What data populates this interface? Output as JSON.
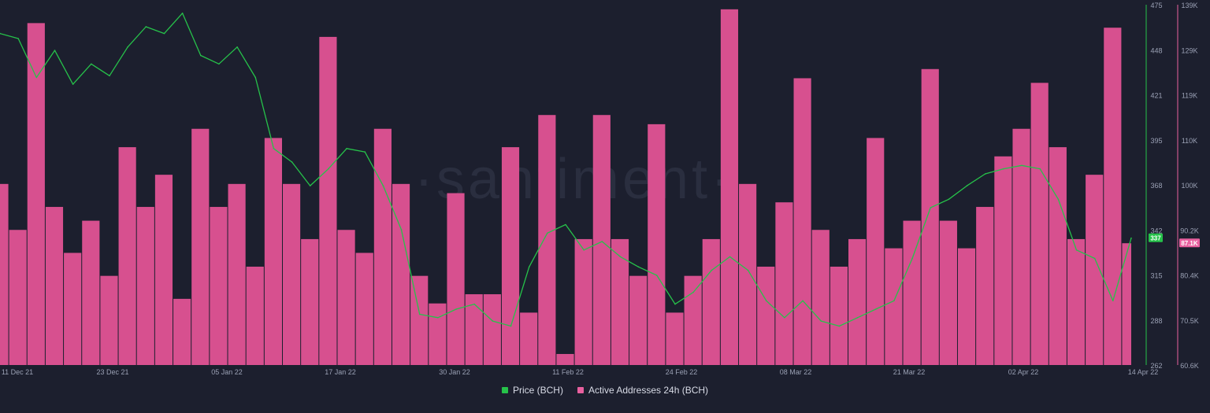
{
  "watermark": "·santiment·",
  "colors": {
    "background": "#1c1f2e",
    "price": "#26c24a",
    "active": "#e8609f",
    "active_fill": "#d7508f",
    "axis_text": "#9aa0b4"
  },
  "chart_data": {
    "type": "bar",
    "x_labels": [
      "11 Dec 21",
      "23 Dec 21",
      "05 Jan 22",
      "17 Jan 22",
      "30 Jan 22",
      "11 Feb 22",
      "24 Feb 22",
      "08 Mar 22",
      "21 Mar 22",
      "02 Apr 22",
      "14 Apr 22"
    ],
    "x_range": [
      "2021-12-11",
      "2022-04-14"
    ],
    "price_axis": {
      "ticks": [
        "475",
        "448",
        "421",
        "395",
        "368",
        "342",
        "315",
        "288",
        "262"
      ],
      "ylim": [
        262,
        475
      ]
    },
    "active_axis": {
      "ticks": [
        "139K",
        "129K",
        "119K",
        "110K",
        "100K",
        "90.2K",
        "80.4K",
        "70.5K",
        "60.6K"
      ],
      "ylim": [
        60600,
        139000
      ]
    },
    "last_values": {
      "price": "337",
      "active": "87.1K"
    },
    "series": [
      {
        "name": "Price (BCH)",
        "axis": "left",
        "render": "line",
        "values": [
          {
            "x": "2021-12-11",
            "y": 458
          },
          {
            "x": "2021-12-13",
            "y": 455
          },
          {
            "x": "2021-12-15",
            "y": 432
          },
          {
            "x": "2021-12-17",
            "y": 448
          },
          {
            "x": "2021-12-19",
            "y": 428
          },
          {
            "x": "2021-12-21",
            "y": 440
          },
          {
            "x": "2021-12-23",
            "y": 433
          },
          {
            "x": "2021-12-25",
            "y": 450
          },
          {
            "x": "2021-12-27",
            "y": 462
          },
          {
            "x": "2021-12-29",
            "y": 458
          },
          {
            "x": "2021-12-31",
            "y": 470
          },
          {
            "x": "2022-01-02",
            "y": 445
          },
          {
            "x": "2022-01-04",
            "y": 440
          },
          {
            "x": "2022-01-06",
            "y": 450
          },
          {
            "x": "2022-01-08",
            "y": 432
          },
          {
            "x": "2022-01-10",
            "y": 390
          },
          {
            "x": "2022-01-12",
            "y": 382
          },
          {
            "x": "2022-01-14",
            "y": 368
          },
          {
            "x": "2022-01-16",
            "y": 378
          },
          {
            "x": "2022-01-18",
            "y": 390
          },
          {
            "x": "2022-01-20",
            "y": 388
          },
          {
            "x": "2022-01-22",
            "y": 368
          },
          {
            "x": "2022-01-24",
            "y": 342
          },
          {
            "x": "2022-01-26",
            "y": 292
          },
          {
            "x": "2022-01-28",
            "y": 290
          },
          {
            "x": "2022-01-30",
            "y": 295
          },
          {
            "x": "2022-02-01",
            "y": 298
          },
          {
            "x": "2022-02-03",
            "y": 288
          },
          {
            "x": "2022-02-05",
            "y": 285
          },
          {
            "x": "2022-02-07",
            "y": 320
          },
          {
            "x": "2022-02-09",
            "y": 340
          },
          {
            "x": "2022-02-11",
            "y": 345
          },
          {
            "x": "2022-02-13",
            "y": 330
          },
          {
            "x": "2022-02-15",
            "y": 335
          },
          {
            "x": "2022-02-17",
            "y": 326
          },
          {
            "x": "2022-02-19",
            "y": 320
          },
          {
            "x": "2022-02-21",
            "y": 315
          },
          {
            "x": "2022-02-23",
            "y": 298
          },
          {
            "x": "2022-02-25",
            "y": 305
          },
          {
            "x": "2022-02-27",
            "y": 318
          },
          {
            "x": "2022-03-01",
            "y": 326
          },
          {
            "x": "2022-03-03",
            "y": 318
          },
          {
            "x": "2022-03-05",
            "y": 300
          },
          {
            "x": "2022-03-07",
            "y": 290
          },
          {
            "x": "2022-03-09",
            "y": 300
          },
          {
            "x": "2022-03-11",
            "y": 288
          },
          {
            "x": "2022-03-13",
            "y": 285
          },
          {
            "x": "2022-03-15",
            "y": 290
          },
          {
            "x": "2022-03-17",
            "y": 295
          },
          {
            "x": "2022-03-19",
            "y": 300
          },
          {
            "x": "2022-03-21",
            "y": 325
          },
          {
            "x": "2022-03-23",
            "y": 355
          },
          {
            "x": "2022-03-25",
            "y": 360
          },
          {
            "x": "2022-03-27",
            "y": 368
          },
          {
            "x": "2022-03-29",
            "y": 375
          },
          {
            "x": "2022-03-31",
            "y": 378
          },
          {
            "x": "2022-04-02",
            "y": 380
          },
          {
            "x": "2022-04-04",
            "y": 378
          },
          {
            "x": "2022-04-06",
            "y": 360
          },
          {
            "x": "2022-04-08",
            "y": 330
          },
          {
            "x": "2022-04-10",
            "y": 325
          },
          {
            "x": "2022-04-12",
            "y": 300
          },
          {
            "x": "2022-04-14",
            "y": 337
          }
        ]
      },
      {
        "name": "Active Addresses 24h (BCH)",
        "axis": "right",
        "render": "bars",
        "values": [
          {
            "x": "2021-12-11",
            "y": 100000
          },
          {
            "x": "2021-12-13",
            "y": 90000
          },
          {
            "x": "2021-12-15",
            "y": 135000
          },
          {
            "x": "2021-12-17",
            "y": 95000
          },
          {
            "x": "2021-12-19",
            "y": 85000
          },
          {
            "x": "2021-12-21",
            "y": 92000
          },
          {
            "x": "2021-12-23",
            "y": 80000
          },
          {
            "x": "2021-12-25",
            "y": 108000
          },
          {
            "x": "2021-12-27",
            "y": 95000
          },
          {
            "x": "2021-12-29",
            "y": 102000
          },
          {
            "x": "2021-12-31",
            "y": 75000
          },
          {
            "x": "2022-01-02",
            "y": 112000
          },
          {
            "x": "2022-01-04",
            "y": 95000
          },
          {
            "x": "2022-01-06",
            "y": 100000
          },
          {
            "x": "2022-01-08",
            "y": 82000
          },
          {
            "x": "2022-01-10",
            "y": 110000
          },
          {
            "x": "2022-01-12",
            "y": 100000
          },
          {
            "x": "2022-01-14",
            "y": 88000
          },
          {
            "x": "2022-01-16",
            "y": 132000
          },
          {
            "x": "2022-01-18",
            "y": 90000
          },
          {
            "x": "2022-01-20",
            "y": 85000
          },
          {
            "x": "2022-01-22",
            "y": 112000
          },
          {
            "x": "2022-01-24",
            "y": 100000
          },
          {
            "x": "2022-01-26",
            "y": 80000
          },
          {
            "x": "2022-01-28",
            "y": 74000
          },
          {
            "x": "2022-01-30",
            "y": 98000
          },
          {
            "x": "2022-02-01",
            "y": 76000
          },
          {
            "x": "2022-02-03",
            "y": 76000
          },
          {
            "x": "2022-02-05",
            "y": 108000
          },
          {
            "x": "2022-02-07",
            "y": 72000
          },
          {
            "x": "2022-02-09",
            "y": 115000
          },
          {
            "x": "2022-02-11",
            "y": 63000
          },
          {
            "x": "2022-02-13",
            "y": 88000
          },
          {
            "x": "2022-02-15",
            "y": 115000
          },
          {
            "x": "2022-02-17",
            "y": 88000
          },
          {
            "x": "2022-02-19",
            "y": 80000
          },
          {
            "x": "2022-02-21",
            "y": 113000
          },
          {
            "x": "2022-02-23",
            "y": 72000
          },
          {
            "x": "2022-02-25",
            "y": 80000
          },
          {
            "x": "2022-02-27",
            "y": 88000
          },
          {
            "x": "2022-03-01",
            "y": 138000
          },
          {
            "x": "2022-03-03",
            "y": 100000
          },
          {
            "x": "2022-03-05",
            "y": 82000
          },
          {
            "x": "2022-03-07",
            "y": 96000
          },
          {
            "x": "2022-03-09",
            "y": 123000
          },
          {
            "x": "2022-03-11",
            "y": 90000
          },
          {
            "x": "2022-03-13",
            "y": 82000
          },
          {
            "x": "2022-03-15",
            "y": 88000
          },
          {
            "x": "2022-03-17",
            "y": 110000
          },
          {
            "x": "2022-03-19",
            "y": 86000
          },
          {
            "x": "2022-03-21",
            "y": 92000
          },
          {
            "x": "2022-03-23",
            "y": 125000
          },
          {
            "x": "2022-03-25",
            "y": 92000
          },
          {
            "x": "2022-03-27",
            "y": 86000
          },
          {
            "x": "2022-03-29",
            "y": 95000
          },
          {
            "x": "2022-03-31",
            "y": 106000
          },
          {
            "x": "2022-04-02",
            "y": 112000
          },
          {
            "x": "2022-04-04",
            "y": 122000
          },
          {
            "x": "2022-04-06",
            "y": 108000
          },
          {
            "x": "2022-04-08",
            "y": 88000
          },
          {
            "x": "2022-04-10",
            "y": 102000
          },
          {
            "x": "2022-04-12",
            "y": 134000
          },
          {
            "x": "2022-04-14",
            "y": 87100
          }
        ]
      }
    ]
  }
}
